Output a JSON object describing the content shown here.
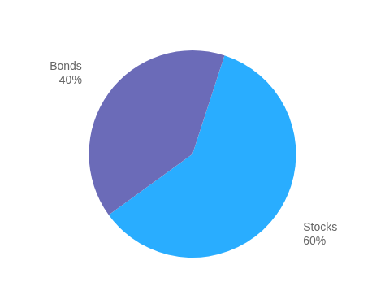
{
  "chart_data": {
    "type": "pie",
    "categories": [
      "Stocks",
      "Bonds"
    ],
    "values": [
      60,
      40
    ],
    "value_labels": [
      "60%",
      "40%"
    ],
    "colors": [
      "#29ADFF",
      "#6B6BB8"
    ],
    "data_labels": true
  }
}
